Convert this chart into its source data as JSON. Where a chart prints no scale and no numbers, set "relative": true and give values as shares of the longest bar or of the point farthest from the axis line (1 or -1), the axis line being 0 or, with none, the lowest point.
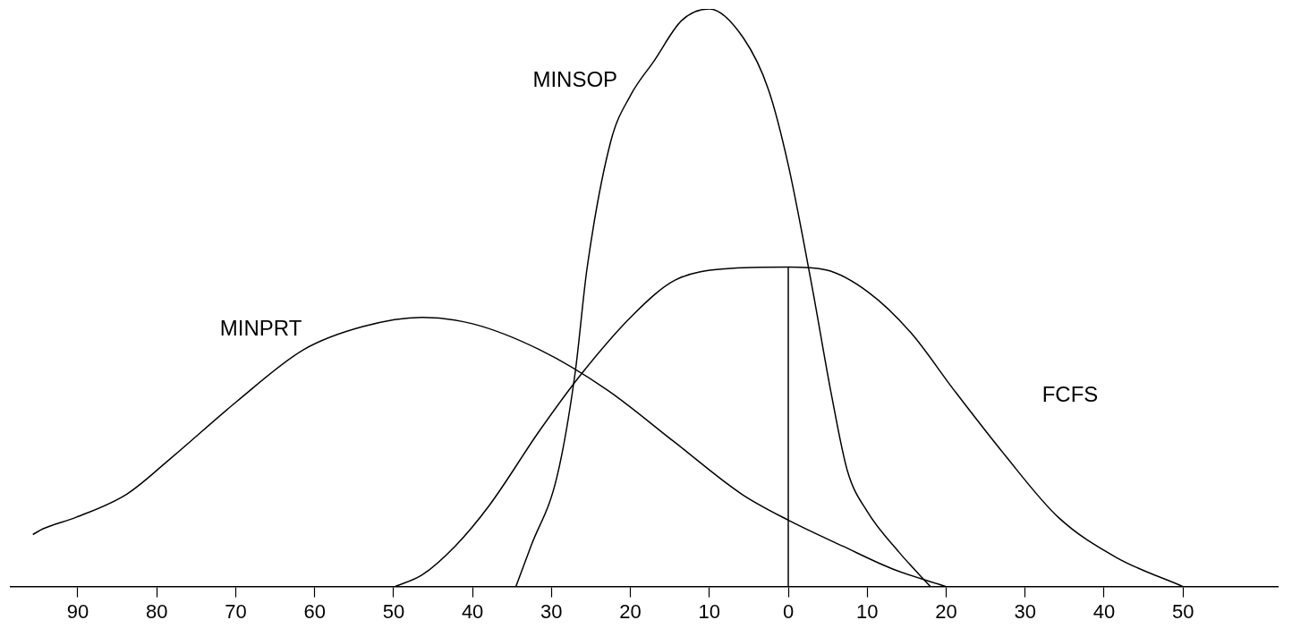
{
  "chart_data": {
    "type": "line",
    "relative": true,
    "grid": false,
    "legend": false,
    "marker": "none",
    "line_style": "solid",
    "xlim": [
      -98.5,
      62
    ],
    "xticks": [
      {
        "value": -90,
        "label": "90"
      },
      {
        "value": -80,
        "label": "80"
      },
      {
        "value": -70,
        "label": "70"
      },
      {
        "value": -60,
        "label": "60"
      },
      {
        "value": -50,
        "label": "50"
      },
      {
        "value": -40,
        "label": "40"
      },
      {
        "value": -30,
        "label": "30"
      },
      {
        "value": -20,
        "label": "20"
      },
      {
        "value": -10,
        "label": "10"
      },
      0,
      10,
      20,
      30,
      40,
      50
    ],
    "series": [
      {
        "name": "MINPRT",
        "color": "#000000",
        "x": [
          -95.7,
          -94.4,
          -90.2,
          -83.8,
          -78.4,
          -69.9,
          -61.4,
          -53.9,
          -46.4,
          -40,
          -31.5,
          -22.9,
          -14.4,
          -5.9,
          0,
          6.9,
          13.3,
          20
        ],
        "values": [
          0.09,
          0.1,
          0.12,
          0.16,
          0.22,
          0.32,
          0.41,
          0.45,
          0.466,
          0.455,
          0.41,
          0.34,
          0.25,
          0.16,
          0.115,
          0.07,
          0.03,
          0
        ]
      },
      {
        "name": "MINSOP",
        "color": "#000000",
        "x": [
          -34.5,
          -32.6,
          -29.3,
          -27,
          -25.5,
          -22.5,
          -20,
          -17,
          -13.5,
          -10,
          -5.7,
          -2.5,
          0,
          3,
          5.5,
          7.5,
          10,
          14,
          18
        ],
        "values": [
          0,
          0.07,
          0.19,
          0.37,
          0.55,
          0.77,
          0.85,
          0.91,
          0.98,
          1,
          0.95,
          0.86,
          0.73,
          0.52,
          0.33,
          0.2,
          0.13,
          0.06,
          0
        ]
      },
      {
        "name": "FCFS",
        "color": "#000000",
        "x": [
          -49.8,
          -46.4,
          -42.2,
          -37.9,
          -31.5,
          -26.1,
          -19.7,
          -14.4,
          -8,
          0,
          4.8,
          10.1,
          15.5,
          21,
          27.3,
          34.2,
          41.6,
          50
        ],
        "values": [
          0,
          0.02,
          0.07,
          0.14,
          0.27,
          0.37,
          0.47,
          0.53,
          0.55,
          0.553,
          0.548,
          0.51,
          0.44,
          0.34,
          0.23,
          0.12,
          0.05,
          0
        ]
      },
      {
        "color": "#000000",
        "x": [
          0,
          0
        ],
        "values": [
          0,
          0.553
        ]
      }
    ]
  }
}
